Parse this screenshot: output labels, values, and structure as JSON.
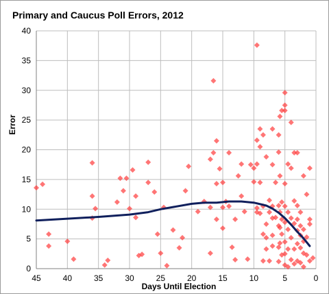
{
  "chart_data": {
    "type": "scatter",
    "title": "Primary and Caucus Poll Errors, 2012",
    "xlabel": "Days Until Election",
    "ylabel": "Error",
    "xlim": [
      45,
      0
    ],
    "ylim": [
      0,
      40
    ],
    "x_reversed": true,
    "grid": true,
    "legend": "none",
    "xticks": [
      "45",
      "40",
      "35",
      "30",
      "25",
      "20",
      "15",
      "10",
      "5",
      "0"
    ],
    "yticks": [
      "0",
      "5",
      "10",
      "15",
      "20",
      "25",
      "30",
      "35",
      "40"
    ],
    "colors": {
      "points": "#ff3b3b",
      "trend": "#0f1f5c"
    },
    "series": [
      {
        "type": "scatter",
        "points": [
          [
            45,
            13.6
          ],
          [
            44,
            14.2
          ],
          [
            43,
            5.8
          ],
          [
            43,
            3.8
          ],
          [
            40,
            4.6
          ],
          [
            39,
            1.6
          ],
          [
            36,
            17.8
          ],
          [
            36,
            12.2
          ],
          [
            36,
            8.5
          ],
          [
            35.5,
            10.1
          ],
          [
            34,
            0.6
          ],
          [
            33.5,
            1.4
          ],
          [
            32,
            11.2
          ],
          [
            31.5,
            15.2
          ],
          [
            31,
            13.1
          ],
          [
            30.5,
            15.2
          ],
          [
            30,
            10.1
          ],
          [
            29.5,
            16.6
          ],
          [
            29,
            12.2
          ],
          [
            29,
            8.6
          ],
          [
            28.5,
            2.2
          ],
          [
            28,
            2.4
          ],
          [
            27,
            14.5
          ],
          [
            27,
            17.9
          ],
          [
            26,
            12.9
          ],
          [
            25.5,
            5.8
          ],
          [
            25,
            2.6
          ],
          [
            24.5,
            10.3
          ],
          [
            24,
            0.5
          ],
          [
            23,
            6.5
          ],
          [
            22,
            3.5
          ],
          [
            21.5,
            5.2
          ],
          [
            21,
            13.1
          ],
          [
            20.5,
            17.2
          ],
          [
            19,
            9.6
          ],
          [
            18,
            11.3
          ],
          [
            17,
            18.4
          ],
          [
            17,
            10.3
          ],
          [
            17,
            2.6
          ],
          [
            16.5,
            31.6
          ],
          [
            16.5,
            19.5
          ],
          [
            16,
            21.5
          ],
          [
            16,
            14.3
          ],
          [
            16,
            8.3
          ],
          [
            15.5,
            16.8
          ],
          [
            15,
            14.5
          ],
          [
            15,
            10.3
          ],
          [
            15,
            6.8
          ],
          [
            14.5,
            11.3
          ],
          [
            14,
            19.5
          ],
          [
            14,
            10.5
          ],
          [
            13.5,
            3.6
          ],
          [
            13,
            8.3
          ],
          [
            13,
            1.5
          ],
          [
            12.5,
            15.6
          ],
          [
            12,
            17.6
          ],
          [
            12,
            12.2
          ],
          [
            11.5,
            9.6
          ],
          [
            11,
            1.6
          ],
          [
            10.5,
            17.5
          ],
          [
            10,
            16.9
          ],
          [
            10,
            14.6
          ],
          [
            9.5,
            37.6
          ],
          [
            9.5,
            21.6
          ],
          [
            9.5,
            17.6
          ],
          [
            9.5,
            10.2
          ],
          [
            9.5,
            9.5
          ],
          [
            9,
            23.5
          ],
          [
            9,
            20.5
          ],
          [
            9,
            14.5
          ],
          [
            9,
            9.3
          ],
          [
            8.5,
            22.5
          ],
          [
            8.5,
            10.5
          ],
          [
            8.5,
            5.8
          ],
          [
            8.5,
            1.3
          ],
          [
            8,
            18.8
          ],
          [
            8,
            7.5
          ],
          [
            8,
            5.2
          ],
          [
            8,
            3.3
          ],
          [
            7.5,
            11.5
          ],
          [
            7.5,
            9.5
          ],
          [
            7.5,
            1.3
          ],
          [
            7,
            23.5
          ],
          [
            7,
            17.5
          ],
          [
            7,
            10.5
          ],
          [
            7,
            8.5
          ],
          [
            7,
            5.6
          ],
          [
            7,
            3.8
          ],
          [
            6.5,
            14.5
          ],
          [
            6.5,
            8.6
          ],
          [
            6,
            22.5
          ],
          [
            6,
            19.6
          ],
          [
            6,
            10.6
          ],
          [
            6,
            7.2
          ],
          [
            6,
            3.6
          ],
          [
            6,
            1.2
          ],
          [
            5.8,
            25.6
          ],
          [
            5.8,
            15.6
          ],
          [
            5.8,
            9.5
          ],
          [
            5.8,
            6.9
          ],
          [
            5.8,
            4.3
          ],
          [
            5.5,
            26.6
          ],
          [
            5.5,
            11.2
          ],
          [
            5.5,
            8.3
          ],
          [
            5.5,
            5.8
          ],
          [
            5.5,
            2.3
          ],
          [
            5,
            29.6
          ],
          [
            5,
            27.5
          ],
          [
            5,
            26.6
          ],
          [
            5,
            14.3
          ],
          [
            5,
            10.5
          ],
          [
            5,
            7.8
          ],
          [
            5,
            4.5
          ],
          [
            5,
            2.5
          ],
          [
            5,
            0.6
          ],
          [
            4.5,
            17.6
          ],
          [
            4.5,
            9.5
          ],
          [
            4.5,
            6.6
          ],
          [
            4.5,
            3.3
          ],
          [
            4.5,
            0.3
          ],
          [
            4,
            24.6
          ],
          [
            4,
            16.9
          ],
          [
            4,
            8.5
          ],
          [
            4,
            5.2
          ],
          [
            4,
            1.5
          ],
          [
            3.5,
            19.5
          ],
          [
            3.5,
            11.4
          ],
          [
            3.5,
            7.6
          ],
          [
            3.5,
            3.3
          ],
          [
            3.5,
            0.8
          ],
          [
            3,
            19.5
          ],
          [
            3,
            10.6
          ],
          [
            3,
            8.3
          ],
          [
            3,
            6.4
          ],
          [
            3,
            4.2
          ],
          [
            3,
            1.3
          ],
          [
            2.5,
            9.5
          ],
          [
            2.5,
            7.2
          ],
          [
            2.5,
            5.6
          ],
          [
            2.5,
            3.5
          ],
          [
            2.5,
            1.0
          ],
          [
            2,
            15.6
          ],
          [
            2,
            6.6
          ],
          [
            2,
            4.6
          ],
          [
            2,
            2.6
          ],
          [
            2,
            0.3
          ],
          [
            1.5,
            12.5
          ],
          [
            1.5,
            5.3
          ],
          [
            1.5,
            2.3
          ],
          [
            1,
            16.9
          ],
          [
            1,
            8.3
          ],
          [
            1,
            7.5
          ],
          [
            1,
            1.3
          ],
          [
            0.5,
            1.8
          ]
        ]
      },
      {
        "type": "line",
        "points": [
          [
            45,
            8.1
          ],
          [
            40,
            8.4
          ],
          [
            35,
            8.7
          ],
          [
            30,
            9.1
          ],
          [
            27,
            9.5
          ],
          [
            25,
            10.0
          ],
          [
            20,
            10.9
          ],
          [
            18,
            11.1
          ],
          [
            16,
            11.1
          ],
          [
            14,
            11.3
          ],
          [
            12,
            11.3
          ],
          [
            10,
            11.1
          ],
          [
            8,
            10.6
          ],
          [
            7,
            10.1
          ],
          [
            6,
            9.4
          ],
          [
            5,
            8.5
          ],
          [
            4,
            7.4
          ],
          [
            3,
            6.2
          ],
          [
            2,
            5.1
          ],
          [
            1,
            3.8
          ]
        ]
      }
    ]
  }
}
